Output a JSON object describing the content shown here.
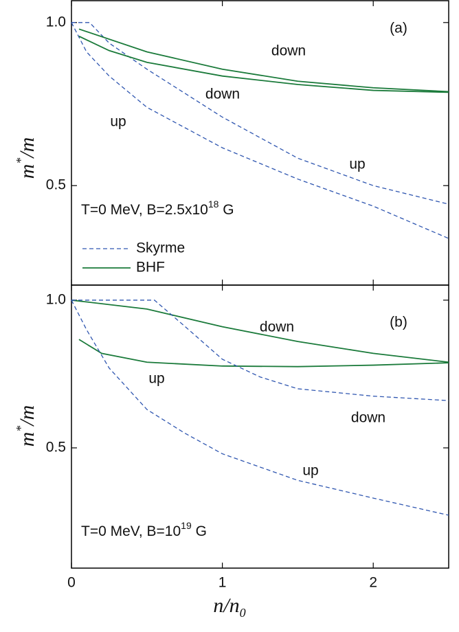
{
  "chart_data": [
    {
      "type": "line",
      "panel_label": "(a)",
      "note": [
        "T=0 MeV, B=2.5x10",
        "18",
        " G"
      ],
      "ylabel": [
        "m",
        "*",
        "/m"
      ],
      "xlim": [
        0,
        2.5
      ],
      "ylim": [
        0.195,
        1.067
      ],
      "xticks": [
        0,
        1,
        2
      ],
      "xtick_labels": false,
      "yticks": [
        {
          "value": 1.0,
          "label": "1.0"
        },
        {
          "value": 0.5,
          "label": "0.5"
        }
      ],
      "legend": [
        {
          "name": "Skyrme",
          "color": "#2f56b0",
          "dashed": true
        },
        {
          "name": "BHF",
          "color": "#1a7a3a",
          "dashed": false
        }
      ],
      "series": [
        {
          "name": "down",
          "color": "#2f56b0",
          "dashed": true,
          "x": [
            0,
            0.12,
            0.25,
            0.5,
            1.0,
            1.5,
            2.0,
            2.5
          ],
          "values": [
            1.0,
            1.0,
            0.937,
            0.857,
            0.71,
            0.584,
            0.5,
            0.443
          ]
        },
        {
          "name": "up",
          "color": "#2f56b0",
          "dashed": true,
          "x": [
            0,
            0.1,
            0.25,
            0.5,
            1.0,
            1.5,
            2.0,
            2.5
          ],
          "values": [
            1.0,
            0.91,
            0.836,
            0.74,
            0.616,
            0.52,
            0.437,
            0.338
          ]
        },
        {
          "name": "down",
          "color": "#1a7a3a",
          "dashed": false,
          "x": [
            0.05,
            0.5,
            1.0,
            1.5,
            2.0,
            2.5
          ],
          "values": [
            0.98,
            0.91,
            0.857,
            0.82,
            0.8,
            0.788
          ]
        },
        {
          "name": "up",
          "color": "#1a7a3a",
          "dashed": false,
          "x": [
            0.05,
            0.25,
            0.5,
            1.0,
            1.5,
            2.0,
            2.5
          ],
          "values": [
            0.958,
            0.914,
            0.878,
            0.836,
            0.81,
            0.792,
            0.786
          ]
        }
      ]
    },
    {
      "type": "line",
      "panel_label": "(b)",
      "note": [
        "T=0 MeV, B=10",
        "19",
        " G"
      ],
      "ylabel": [
        "m",
        "*",
        "/m"
      ],
      "xlabel": [
        "n/n",
        "0"
      ],
      "xlim": [
        0,
        2.5
      ],
      "ylim": [
        0.093,
        1.051
      ],
      "xticks": [
        0,
        1,
        2
      ],
      "xtick_labels": true,
      "yticks": [
        {
          "value": 1.0,
          "label": "1.0"
        },
        {
          "value": 0.5,
          "label": "0.5"
        }
      ],
      "series": [
        {
          "name": "down",
          "color": "#1a7a3a",
          "dashed": false,
          "x": [
            0,
            0.5,
            1.0,
            1.5,
            2.0,
            2.5
          ],
          "values": [
            1.0,
            0.97,
            0.91,
            0.86,
            0.82,
            0.79
          ]
        },
        {
          "name": "up",
          "color": "#1a7a3a",
          "dashed": false,
          "x": [
            0.05,
            0.2,
            0.5,
            1.0,
            1.5,
            2.0,
            2.5
          ],
          "values": [
            0.867,
            0.82,
            0.79,
            0.777,
            0.775,
            0.78,
            0.788
          ]
        },
        {
          "name": "down",
          "color": "#2f56b0",
          "dashed": true,
          "x": [
            0,
            0.55,
            0.75,
            1.0,
            1.25,
            1.5,
            2.0,
            2.5
          ],
          "values": [
            1.0,
            1.0,
            0.912,
            0.8,
            0.74,
            0.7,
            0.675,
            0.66
          ]
        },
        {
          "name": "up",
          "color": "#2f56b0",
          "dashed": true,
          "x": [
            0,
            0.1,
            0.25,
            0.5,
            0.75,
            1.0,
            1.5,
            2.0,
            2.5
          ],
          "values": [
            1.0,
            0.9,
            0.77,
            0.63,
            0.55,
            0.48,
            0.39,
            0.33,
            0.272
          ]
        }
      ]
    }
  ]
}
